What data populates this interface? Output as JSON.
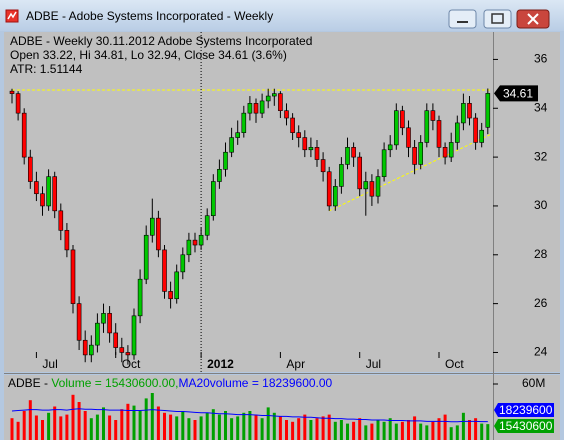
{
  "window": {
    "title": "ADBE - Adobe Systems Incorporated - Weekly"
  },
  "chart_data": [
    {
      "type": "candlestick",
      "header": [
        "ADBE - Weekly 30.11.2012  Adobe Systems Incorporated",
        "Open 33.22, Hi 34.81, Lo 32.94, Close 34.61 (3.6%)",
        "ATR: 1.51144"
      ],
      "categories": [
        null,
        null,
        null,
        null,
        "Jul",
        null,
        null,
        null,
        null,
        null,
        null,
        null,
        null,
        null,
        null,
        null,
        null,
        "Oct",
        null,
        null,
        null,
        null,
        null,
        null,
        null,
        null,
        null,
        null,
        null,
        null,
        null,
        "2012",
        null,
        null,
        null,
        null,
        null,
        null,
        null,
        null,
        null,
        null,
        null,
        null,
        "Apr",
        null,
        null,
        null,
        null,
        null,
        null,
        null,
        null,
        null,
        null,
        null,
        null,
        "Jul",
        null,
        null,
        null,
        null,
        null,
        null,
        null,
        null,
        null,
        null,
        null,
        null,
        "Oct",
        null,
        null,
        null,
        null,
        null,
        null,
        null,
        null
      ],
      "open": [
        34.7,
        34.6,
        33.8,
        32.0,
        31.0,
        30.5,
        30.0,
        31.2,
        29.8,
        29.0,
        28.2,
        26.0,
        24.5,
        23.9,
        24.3,
        25.2,
        25.6,
        24.8,
        24.2,
        24.0,
        23.9,
        25.5,
        27.0,
        28.8,
        29.5,
        28.2,
        26.5,
        26.2,
        27.3,
        28.0,
        28.6,
        28.4,
        28.8,
        29.6,
        31.0,
        31.5,
        32.2,
        32.8,
        33.0,
        33.8,
        34.2,
        33.8,
        34.3,
        34.5,
        34.6,
        33.9,
        33.6,
        33.0,
        32.8,
        32.3,
        32.4,
        31.9,
        31.4,
        30.0,
        30.8,
        31.7,
        32.4,
        32.0,
        30.7,
        31.0,
        30.4,
        31.2,
        32.3,
        32.5,
        33.9,
        33.2,
        32.4,
        31.7,
        32.6,
        33.9,
        33.5,
        32.4,
        32.0,
        32.6,
        33.4,
        34.2,
        33.6,
        32.6,
        33.22
      ],
      "high": [
        34.8,
        34.7,
        34.0,
        32.3,
        31.4,
        30.8,
        31.5,
        31.4,
        30.1,
        29.3,
        28.4,
        26.3,
        24.9,
        24.7,
        25.6,
        26.0,
        25.9,
        25.2,
        24.6,
        24.3,
        25.8,
        27.4,
        29.2,
        30.3,
        29.8,
        28.4,
        26.9,
        27.6,
        28.3,
        28.9,
        28.9,
        29.1,
        29.9,
        31.3,
        31.9,
        32.6,
        33.2,
        33.5,
        34.1,
        34.5,
        34.4,
        34.6,
        34.8,
        34.8,
        34.7,
        34.2,
        33.8,
        33.3,
        33.1,
        32.8,
        32.7,
        32.2,
        31.6,
        31.1,
        32.0,
        32.8,
        32.6,
        32.2,
        31.4,
        31.3,
        31.5,
        32.6,
        32.9,
        34.2,
        34.1,
        33.5,
        32.7,
        32.9,
        34.2,
        34.2,
        33.7,
        32.6,
        33.0,
        33.7,
        34.6,
        34.5,
        33.8,
        33.4,
        34.81
      ],
      "low": [
        34.2,
        33.5,
        31.7,
        30.7,
        30.2,
        29.6,
        29.8,
        29.5,
        28.6,
        27.9,
        25.6,
        24.1,
        23.6,
        23.6,
        24.0,
        24.8,
        24.4,
        23.9,
        23.6,
        23.5,
        23.7,
        25.2,
        26.8,
        28.5,
        27.9,
        26.2,
        25.8,
        26.0,
        27.0,
        27.7,
        28.1,
        28.2,
        28.6,
        29.4,
        30.7,
        31.2,
        32.0,
        32.5,
        32.8,
        33.5,
        33.4,
        33.6,
        34.0,
        34.1,
        33.6,
        33.3,
        32.7,
        32.4,
        32.0,
        32.0,
        31.6,
        31.0,
        29.8,
        29.8,
        30.5,
        31.5,
        31.6,
        30.4,
        29.6,
        30.0,
        30.1,
        31.0,
        32.0,
        32.3,
        32.9,
        32.0,
        31.3,
        31.5,
        32.4,
        33.1,
        32.0,
        31.7,
        31.8,
        32.3,
        33.1,
        33.3,
        32.3,
        32.4,
        32.94
      ],
      "close": [
        34.6,
        33.8,
        32.0,
        31.0,
        30.5,
        30.0,
        31.2,
        29.8,
        29.0,
        28.2,
        26.0,
        24.5,
        23.9,
        24.3,
        25.2,
        25.6,
        24.8,
        24.2,
        24.0,
        23.9,
        25.5,
        27.0,
        28.8,
        29.5,
        28.2,
        26.5,
        26.2,
        27.3,
        28.0,
        28.6,
        28.4,
        28.8,
        29.6,
        31.0,
        31.5,
        32.2,
        32.8,
        33.0,
        33.8,
        34.2,
        33.8,
        34.3,
        34.5,
        34.6,
        33.9,
        33.6,
        33.0,
        32.8,
        32.3,
        32.4,
        31.9,
        31.4,
        30.0,
        30.8,
        31.7,
        32.4,
        32.0,
        30.7,
        31.0,
        30.4,
        31.2,
        32.3,
        32.5,
        33.9,
        33.2,
        32.4,
        31.7,
        32.6,
        33.9,
        33.5,
        32.4,
        32.0,
        32.6,
        33.4,
        34.2,
        33.6,
        32.6,
        33.1,
        34.61
      ],
      "up_color": "#00c800",
      "down_color": "#ff0000",
      "ylim": [
        23.2,
        37.0
      ],
      "yticks": [
        24,
        26,
        28,
        30,
        32,
        34,
        36
      ],
      "trendline_color": "#ffff00",
      "trendlines": [
        {
          "x": [
            0,
            78
          ],
          "y": [
            34.75,
            34.75
          ]
        },
        {
          "x": [
            52,
            78
          ],
          "y": [
            29.8,
            32.95
          ]
        }
      ]
    },
    {
      "type": "volume",
      "header": [
        "ADBE - ",
        "Volume = 15430600.00,",
        "MA20volume = 18239600.00"
      ],
      "volume": {
        "values": [
          22,
          18,
          30,
          42,
          25,
          20,
          28,
          35,
          24,
          26,
          48,
          40,
          30,
          22,
          26,
          34,
          25,
          20,
          32,
          38,
          36,
          30,
          44,
          50,
          35,
          28,
          26,
          24,
          30,
          22,
          20,
          24,
          28,
          32,
          26,
          30,
          22,
          24,
          28,
          30,
          26,
          22,
          34,
          28,
          24,
          20,
          18,
          22,
          26,
          20,
          22,
          24,
          26,
          18,
          20,
          16,
          18,
          22,
          14,
          16,
          20,
          18,
          22,
          16,
          18,
          20,
          24,
          16,
          14,
          18,
          22,
          26,
          12,
          14,
          28,
          20,
          22,
          16,
          15.4306
        ],
        "last_label": "15430600",
        "color": "#00a000"
      },
      "ma20": {
        "values": [
          30,
          30.5,
          31,
          31.5,
          31.5,
          31,
          31,
          31.5,
          31.5,
          31,
          32,
          32.5,
          32,
          32,
          31.5,
          31.5,
          31,
          31,
          31,
          30.5,
          30.5,
          30.5,
          31,
          31.5,
          31,
          30.5,
          30,
          29.5,
          29.5,
          29,
          28.5,
          28,
          28,
          27.5,
          27,
          27,
          26.5,
          26,
          26,
          26,
          25.5,
          25,
          25,
          24.5,
          24,
          24,
          23.5,
          23.5,
          23,
          23,
          22.5,
          22,
          22,
          21.5,
          21.5,
          21,
          21,
          20.5,
          20.5,
          20,
          20,
          20,
          19.5,
          19.5,
          19.5,
          19,
          19,
          19,
          18.5,
          18.5,
          18.5,
          18.5,
          18,
          18,
          18.5,
          18.5,
          18.5,
          18.2,
          18.2396
        ],
        "last_label": "18239600",
        "color": "#0000ff"
      },
      "up_color": "#00a000",
      "down_color": "#ff0000",
      "ylim": [
        0,
        60
      ],
      "yticks": [
        {
          "value": 60,
          "label": "60M"
        }
      ]
    }
  ]
}
